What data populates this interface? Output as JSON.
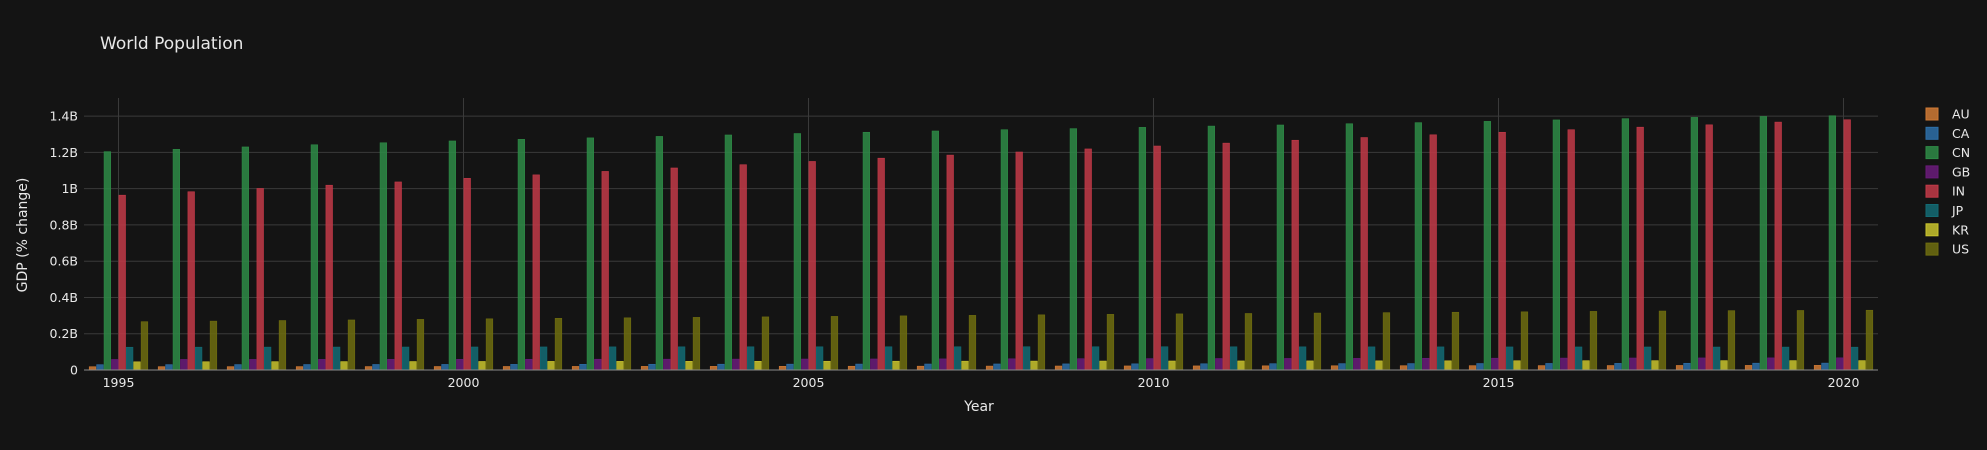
{
  "chart_data": {
    "type": "bar",
    "barmode": "group",
    "title": "World Population",
    "xlabel": "Year",
    "ylabel": "GDP (% change)",
    "x": [
      1995,
      1996,
      1997,
      1998,
      1999,
      2000,
      2001,
      2002,
      2003,
      2004,
      2005,
      2006,
      2007,
      2008,
      2009,
      2010,
      2011,
      2012,
      2013,
      2014,
      2015,
      2016,
      2017,
      2018,
      2019,
      2020
    ],
    "xticks": [
      1995,
      2000,
      2005,
      2010,
      2015,
      2020
    ],
    "xtick_labels": [
      "1995",
      "2000",
      "2005",
      "2010",
      "2015",
      "2020"
    ],
    "ylim": [
      0,
      1500000000
    ],
    "yticks": [
      0,
      200000000,
      400000000,
      600000000,
      800000000,
      1000000000,
      1200000000,
      1400000000
    ],
    "ytick_labels": [
      "0",
      "0.2B",
      "0.4B",
      "0.6B",
      "0.8B",
      "1B",
      "1.2B",
      "1.4B"
    ],
    "grid": true,
    "legend_position": "right",
    "series": [
      {
        "name": "AU",
        "color": "#d07a35",
        "values": [
          18000000,
          18300000,
          18500000,
          18700000,
          18900000,
          19200000,
          19400000,
          19700000,
          19900000,
          20100000,
          20400000,
          20700000,
          21000000,
          21500000,
          21900000,
          22300000,
          22500000,
          22900000,
          23300000,
          23600000,
          23900000,
          24200000,
          24600000,
          25000000,
          25300000,
          25700000
        ]
      },
      {
        "name": "CA",
        "color": "#2d6fa8",
        "values": [
          29300000,
          29600000,
          29900000,
          30200000,
          30400000,
          30700000,
          31000000,
          31400000,
          31600000,
          31900000,
          32200000,
          32600000,
          32900000,
          33200000,
          33600000,
          34000000,
          34300000,
          34700000,
          35100000,
          35400000,
          35700000,
          36100000,
          36500000,
          37100000,
          37600000,
          38000000
        ]
      },
      {
        "name": "CN",
        "color": "#2e8b46",
        "values": [
          1204000000,
          1217000000,
          1230000000,
          1242000000,
          1253000000,
          1263000000,
          1272000000,
          1280000000,
          1288000000,
          1296000000,
          1304000000,
          1311000000,
          1318000000,
          1325000000,
          1331000000,
          1338000000,
          1345000000,
          1351000000,
          1358000000,
          1364000000,
          1371000000,
          1379000000,
          1386000000,
          1393000000,
          1398000000,
          1402000000
        ]
      },
      {
        "name": "GB",
        "color": "#6a1b7a",
        "values": [
          58000000,
          58200000,
          58300000,
          58500000,
          58700000,
          58900000,
          59100000,
          59400000,
          59600000,
          60000000,
          60400000,
          60800000,
          61300000,
          61800000,
          62300000,
          62800000,
          63300000,
          63700000,
          64100000,
          64600000,
          65100000,
          65600000,
          66000000,
          66500000,
          66800000,
          67100000
        ]
      },
      {
        "name": "IN",
        "color": "#c23a48",
        "values": [
          964000000,
          983000000,
          1001000000,
          1019000000,
          1037000000,
          1057000000,
          1076000000,
          1095000000,
          1114000000,
          1132000000,
          1150000000,
          1168000000,
          1185000000,
          1202000000,
          1219000000,
          1235000000,
          1251000000,
          1267000000,
          1282000000,
          1297000000,
          1311000000,
          1325000000,
          1339000000,
          1352000000,
          1367000000,
          1380000000
        ]
      },
      {
        "name": "JP",
        "color": "#136b74",
        "values": [
          125400000,
          125800000,
          126100000,
          126400000,
          126600000,
          126800000,
          127100000,
          127400000,
          127700000,
          127800000,
          127800000,
          127900000,
          128000000,
          128100000,
          128000000,
          128100000,
          127800000,
          127600000,
          127400000,
          127300000,
          127100000,
          127000000,
          126800000,
          126500000,
          126300000,
          125800000
        ]
      },
      {
        "name": "KR",
        "color": "#c9c42d",
        "values": [
          45100000,
          45500000,
          46000000,
          46300000,
          46600000,
          47000000,
          47400000,
          47600000,
          47900000,
          48000000,
          48200000,
          48400000,
          48700000,
          49100000,
          49300000,
          49600000,
          49900000,
          50200000,
          50400000,
          50700000,
          51000000,
          51200000,
          51400000,
          51600000,
          51700000,
          51800000
        ]
      },
      {
        "name": "US",
        "color": "#6f6d0f",
        "values": [
          266300000,
          269400000,
          272700000,
          275900000,
          279000000,
          282200000,
          285000000,
          287600000,
          290100000,
          292800000,
          295500000,
          298400000,
          301200000,
          304100000,
          306800000,
          309300000,
          311600000,
          313900000,
          316100000,
          318400000,
          320700000,
          323100000,
          325100000,
          327200000,
          328200000,
          329500000
        ]
      }
    ]
  }
}
